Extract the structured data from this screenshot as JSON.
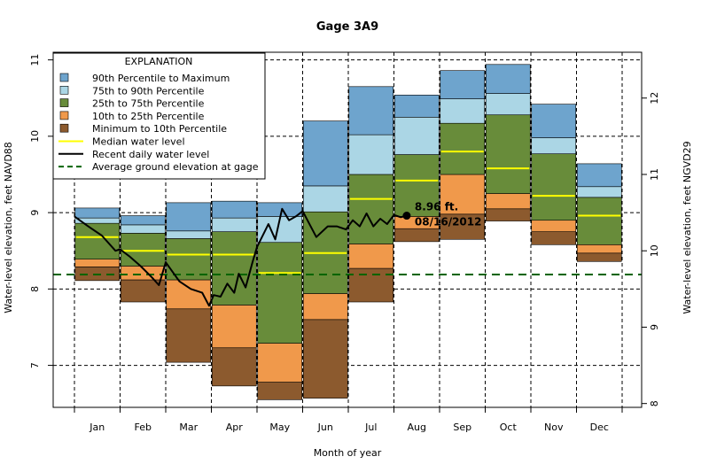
{
  "chart_data": {
    "type": "bar",
    "title": "Gage 3A9",
    "xlabel": "Month of year",
    "ylabel": "Water-level elevation, feet NAVD88",
    "y2label": "Water-level elevation, feet NGVD29",
    "ylim": [
      6.45,
      11.1
    ],
    "y2_offset": 1.5,
    "yticks": [
      7,
      8,
      9,
      10,
      11
    ],
    "y2ticks": [
      8,
      9,
      10,
      11,
      12
    ],
    "grid": true,
    "legend_position": "top-left",
    "months": [
      "Jan",
      "Feb",
      "Mar",
      "Apr",
      "May",
      "Jun",
      "Jul",
      "Aug",
      "Sep",
      "Oct",
      "Nov",
      "Dec"
    ],
    "x_ticks": [
      "Jan",
      "Feb",
      "Mar",
      "Apr",
      "May",
      "Jun",
      "Jul",
      "Aug",
      "Sep",
      "Oct",
      "Nov",
      "Dec"
    ],
    "percentiles": {
      "min": [
        8.11,
        7.83,
        7.04,
        6.73,
        6.55,
        6.57,
        7.83,
        8.62,
        8.65,
        8.89,
        8.58,
        8.36
      ],
      "p10": [
        8.29,
        8.12,
        7.74,
        7.23,
        6.78,
        7.6,
        8.27,
        8.79,
        8.98,
        9.05,
        8.75,
        8.47
      ],
      "p25": [
        8.39,
        8.3,
        8.12,
        7.79,
        7.29,
        7.94,
        8.59,
        8.95,
        9.5,
        9.25,
        8.9,
        8.58
      ],
      "p75": [
        8.86,
        8.73,
        8.66,
        8.75,
        8.61,
        9.01,
        9.5,
        9.76,
        10.17,
        10.28,
        9.77,
        9.2
      ],
      "p90": [
        8.93,
        8.84,
        8.76,
        8.93,
        8.95,
        9.35,
        10.02,
        10.25,
        10.49,
        10.56,
        9.98,
        9.34
      ],
      "max": [
        9.06,
        8.96,
        9.13,
        9.15,
        9.13,
        10.2,
        10.65,
        10.54,
        10.86,
        10.94,
        10.42,
        9.64
      ],
      "median": [
        8.68,
        8.5,
        8.45,
        8.45,
        8.21,
        8.47,
        9.18,
        9.42,
        9.8,
        9.58,
        9.22,
        8.96
      ]
    },
    "average_ground_elevation": 8.19,
    "recent_daily_water_level": {
      "x": [
        0.0,
        0.3,
        0.6,
        0.9,
        1.0,
        1.2,
        1.45,
        1.7,
        1.85,
        2.0,
        2.3,
        2.55,
        2.8,
        2.95,
        3.05,
        3.2,
        3.35,
        3.5,
        3.6,
        3.75,
        3.9,
        4.0,
        4.25,
        4.4,
        4.55,
        4.7,
        4.85,
        5.0,
        5.3,
        5.55,
        5.75,
        5.95,
        6.1,
        6.25,
        6.4,
        6.55,
        6.7,
        6.85,
        7.0,
        7.15,
        7.28
      ],
      "y": [
        8.95,
        8.82,
        8.7,
        8.5,
        8.52,
        8.43,
        8.3,
        8.15,
        8.05,
        8.35,
        8.1,
        8.0,
        7.95,
        7.78,
        7.92,
        7.9,
        8.07,
        7.95,
        8.2,
        8.02,
        8.35,
        8.55,
        8.85,
        8.65,
        9.05,
        8.9,
        8.95,
        9.02,
        8.68,
        8.82,
        8.82,
        8.78,
        8.9,
        8.82,
        8.99,
        8.82,
        8.92,
        8.85,
        8.97,
        8.94,
        8.96
      ]
    },
    "current_point": {
      "x": 7.28,
      "value": 8.96,
      "value_label": "8.96 ft.",
      "date_label": "08/16/2012"
    },
    "colors": {
      "max_band": "#6ea4cd",
      "p90_band": "#abd6e5",
      "mid_band": "#688c3a",
      "p10_band": "#f0994b",
      "min_band": "#8c5a2e",
      "median": "#ffff00",
      "recent": "#000000",
      "ground": "#006400"
    },
    "legend": {
      "title": "EXPLANATION",
      "items": [
        {
          "label": "90th Percentile to Maximum",
          "kind": "box",
          "color": "#6ea4cd"
        },
        {
          "label": "75th to 90th Percentile",
          "kind": "box",
          "color": "#abd6e5"
        },
        {
          "label": "25th to 75th Percentile",
          "kind": "box",
          "color": "#688c3a"
        },
        {
          "label": "10th to 25th Percentile",
          "kind": "box",
          "color": "#f0994b"
        },
        {
          "label": "Minimum to 10th Percentile",
          "kind": "box",
          "color": "#8c5a2e"
        },
        {
          "label": "Median water level",
          "kind": "line",
          "color": "#ffff00"
        },
        {
          "label": "Recent daily water level",
          "kind": "line",
          "color": "#000000"
        },
        {
          "label": "Average ground elevation at gage",
          "kind": "dash",
          "color": "#006400"
        }
      ]
    }
  }
}
